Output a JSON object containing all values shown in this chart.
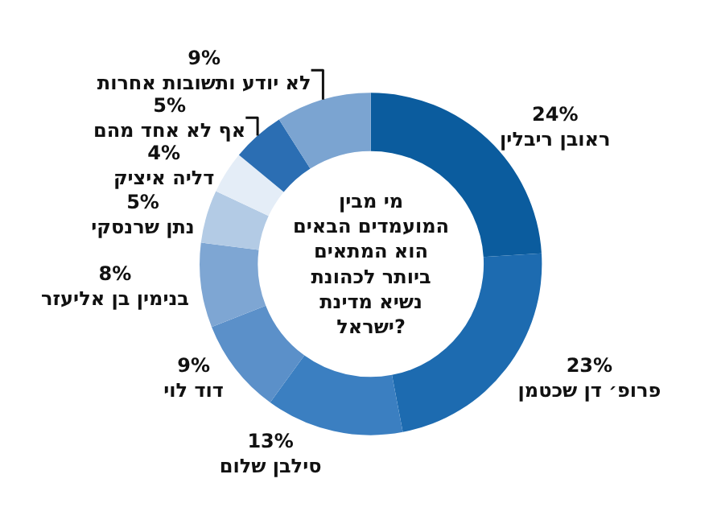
{
  "chart_data": {
    "type": "donut",
    "title": "מי מבין המועמדים הבאים הוא המתאים ביותר לכהונת נשיא מדינת ישראל?",
    "categories": [
      "ראובן ריבלין",
      "פרופ׳ דן שכטמן",
      "סילבן שלום",
      "דוד לוי",
      "בנימין בן אליעזר",
      "נתן שרנסקי",
      "דליה איציק",
      "אף לא אחד מהם",
      "לא יודע ותשובות אחרות"
    ],
    "values": [
      24,
      23,
      13,
      9,
      8,
      5,
      4,
      5,
      9
    ],
    "value_labels": [
      "24%",
      "23%",
      "13%",
      "9%",
      "8%",
      "5%",
      "4%",
      "5%",
      "9%"
    ],
    "colors": [
      "#0b5c9e",
      "#1d6bb0",
      "#3b7fc1",
      "#5b90c9",
      "#7ea6d3",
      "#b3cbe5",
      "#e4edf7",
      "#2b6eb3",
      "#7ba4d1"
    ],
    "legend": false
  }
}
